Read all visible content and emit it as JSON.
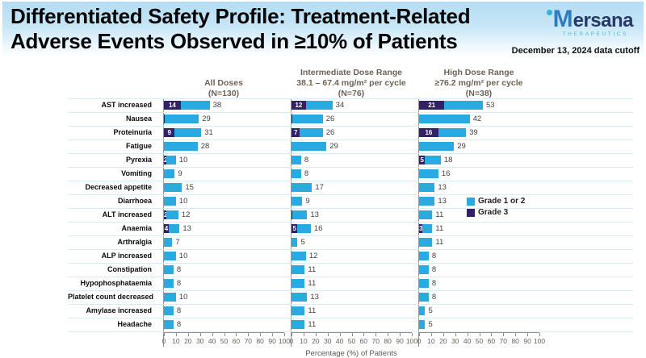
{
  "header": {
    "title_line1": "Differentiated Safety Profile: Treatment-Related",
    "title_line2": "Adverse Events Observed in ≥10% of Patients",
    "logo": {
      "dot": "logo-dot",
      "initial": "M",
      "rest": "ersana",
      "sub": "THERAPEUTICS"
    },
    "date_note": "December 13, 2024 data cutoff"
  },
  "chart_data": {
    "type": "bar",
    "orientation": "horizontal",
    "stacked": true,
    "xlabel": "Percentage (%) of Patients",
    "xlim": [
      0,
      100
    ],
    "ticks": [
      0,
      10,
      20,
      30,
      40,
      50,
      60,
      70,
      80,
      90,
      100
    ],
    "grid": "row-separators",
    "legend_position": "inside-right-panel",
    "legend": [
      {
        "label": "Grade 1 or 2",
        "color": "#29abe2"
      },
      {
        "label": "Grade 3",
        "color": "#32206a"
      }
    ],
    "categories": [
      "AST increased",
      "Nausea",
      "Proteinuria",
      "Fatigue",
      "Pyrexia",
      "Vomiting",
      "Decreased appetite",
      "Diarrhoea",
      "ALT increased",
      "Anaemia",
      "Arthralgia",
      "ALP increased",
      "Constipation",
      "Hypophosphataemia",
      "Platelet count decreased",
      "Amylase increased",
      "Headache"
    ],
    "panels": [
      {
        "title_lines": [
          "All Doses",
          "(N=130)"
        ],
        "total": [
          38,
          29,
          31,
          28,
          10,
          9,
          15,
          10,
          12,
          13,
          7,
          10,
          8,
          8,
          10,
          8,
          8
        ],
        "grade3": [
          14,
          1,
          9,
          0,
          2,
          0,
          0,
          0,
          2,
          4,
          0,
          0,
          0,
          0,
          0,
          0,
          0
        ]
      },
      {
        "title_lines": [
          "Intermediate Dose Range",
          "38.1 – 67.4 mg/m² per cycle",
          "(N=76)"
        ],
        "total": [
          34,
          26,
          26,
          29,
          8,
          8,
          17,
          9,
          13,
          16,
          5,
          12,
          11,
          11,
          13,
          11,
          11
        ],
        "grade3": [
          12,
          1,
          7,
          0,
          0,
          0,
          0,
          0,
          1,
          5,
          0,
          0,
          0,
          0,
          0,
          0,
          0
        ]
      },
      {
        "title_lines": [
          "High Dose Range",
          "≥76.2 mg/m² per cycle",
          "(N=38)"
        ],
        "total": [
          53,
          42,
          39,
          29,
          18,
          16,
          13,
          13,
          11,
          11,
          11,
          8,
          8,
          8,
          8,
          5,
          5
        ],
        "grade3": [
          21,
          0,
          16,
          0,
          5,
          0,
          0,
          0,
          0,
          3,
          0,
          0,
          0,
          0,
          0,
          0,
          0
        ]
      }
    ]
  }
}
